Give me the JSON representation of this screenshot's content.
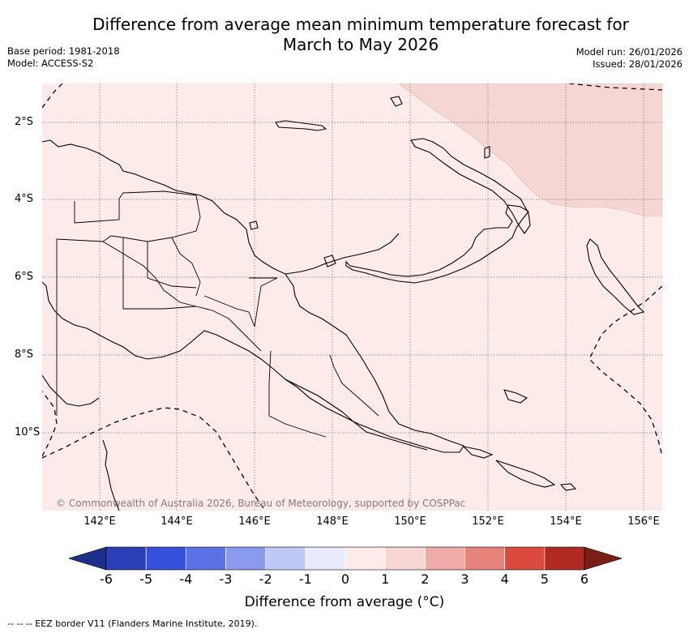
{
  "title_line1": "Difference from average mean minimum temperature forecast for",
  "title_line2": "March to May 2026",
  "base_period": "Base period: 1981-2018",
  "model": "Model: ACCESS-S2",
  "model_run": "Model run: 26/01/2026",
  "issued": "Issued: 28/01/2026",
  "lat_labels": [
    "2°S",
    "4°S",
    "6°S",
    "8°S",
    "10°S"
  ],
  "lon_labels": [
    "142°E",
    "144°E",
    "146°E",
    "148°E",
    "150°E",
    "152°E",
    "154°E",
    "156°E"
  ],
  "copyright": "© Commonwealth of Australia 2026, Bureau of Meteorology, supported by COSPPac",
  "colorbar": {
    "ticks": [
      "-6",
      "-5",
      "-4",
      "-3",
      "-2",
      "-1",
      "0",
      "1",
      "2",
      "3",
      "4",
      "5",
      "6"
    ],
    "colors": [
      "#1d2f8a",
      "#2a3fb8",
      "#3450dc",
      "#5a72e6",
      "#8a9bee",
      "#c0c8f6",
      "#e8ebfb",
      "#fcebe8",
      "#f6d6d2",
      "#f0aca6",
      "#e6837b",
      "#dc4a3e",
      "#ae2a22",
      "#7a1e18"
    ],
    "label": "Difference from average (°C)"
  },
  "legend_text": "-- EEZ border V11 (Flanders Marine Institute, 2019).",
  "map": {
    "background_color": "#fcebe8",
    "anomaly_patch_color": "#f6d6d2"
  }
}
